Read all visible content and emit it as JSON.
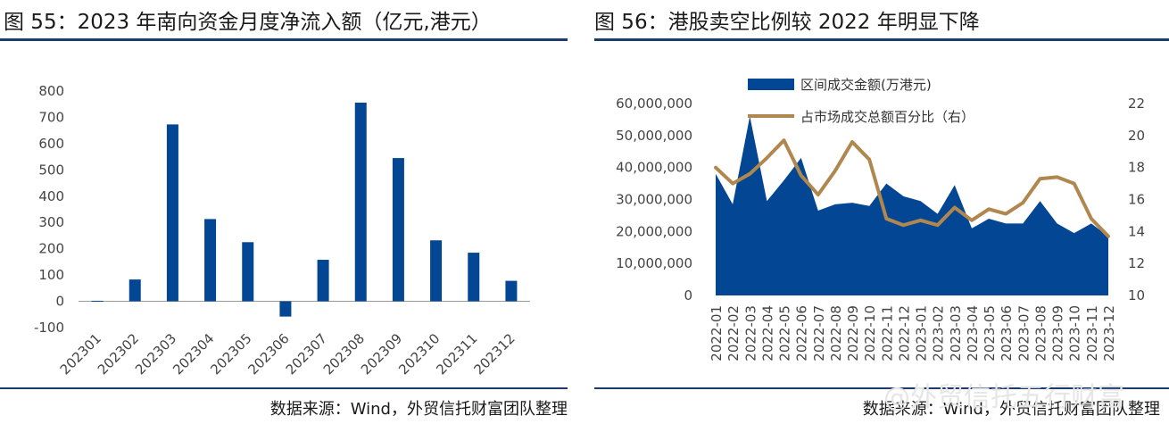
{
  "left_panel": {
    "title": "图 55：2023 年南向资金月度净流入额（亿元,港元）",
    "source": "数据来源：Wind，外贸信托财富团队整理"
  },
  "right_panel": {
    "title": "图 56：港股卖空比例较 2022 年明显下降",
    "source": "数据来源：Wind，外贸信托财富团队整理"
  },
  "watermark": "@外贸信托五行财富",
  "colors": {
    "navy": "#034694",
    "gold": "#b0884f",
    "rule": "#1a3d6e"
  },
  "chart_data": [
    {
      "type": "bar",
      "categories": [
        "202301",
        "202302",
        "202303",
        "202304",
        "202305",
        "202306",
        "202307",
        "202308",
        "202309",
        "202310",
        "202311",
        "202312"
      ],
      "values": [
        2,
        83,
        673,
        313,
        225,
        -58,
        158,
        756,
        545,
        232,
        185,
        78
      ],
      "ylim": [
        -100,
        800
      ],
      "yticks": [
        -100,
        0,
        100,
        200,
        300,
        400,
        500,
        600,
        700,
        800
      ],
      "ytick_labels": [
        "-100",
        "0",
        "100",
        "200",
        "300",
        "400",
        "500",
        "600",
        "700",
        "800"
      ],
      "grid": false,
      "color": "#034694"
    },
    {
      "type": "area",
      "categories": [
        "2022-01",
        "2022-02",
        "2022-03",
        "2022-04",
        "2022-05",
        "2022-06",
        "2022-07",
        "2022-08",
        "2022-09",
        "2022-10",
        "2022-11",
        "2022-12",
        "2023-01",
        "2023-02",
        "2023-03",
        "2023-04",
        "2023-05",
        "2023-06",
        "2023-07",
        "2023-08",
        "2023-09",
        "2023-10",
        "2023-11",
        "2023-12"
      ],
      "series": [
        {
          "name": "区间成交金额(万港元)",
          "kind": "area",
          "axis": "left",
          "color": "#034694",
          "values": [
            38000000,
            28500000,
            56000000,
            29500000,
            36000000,
            43000000,
            26500000,
            28500000,
            29000000,
            28000000,
            35000000,
            31000000,
            29500000,
            25500000,
            34500000,
            21000000,
            24000000,
            22500000,
            22500000,
            29500000,
            22500000,
            19500000,
            22500000,
            18500000
          ]
        },
        {
          "name": "占市场成交总额百分比（右）",
          "kind": "line",
          "axis": "right",
          "color": "#b0884f",
          "values": [
            18.0,
            17.0,
            17.6,
            18.6,
            19.7,
            17.5,
            16.3,
            17.8,
            19.6,
            18.5,
            14.8,
            14.4,
            14.7,
            14.4,
            15.5,
            14.7,
            15.4,
            15.1,
            15.8,
            17.3,
            17.4,
            17.0,
            14.8,
            13.7
          ]
        }
      ],
      "ylim_left": [
        0,
        60000000
      ],
      "yticks_left": [
        0,
        10000000,
        20000000,
        30000000,
        40000000,
        50000000,
        60000000
      ],
      "ytick_labels_left": [
        "0",
        "10,000,000",
        "20,000,000",
        "30,000,000",
        "40,000,000",
        "50,000,000",
        "60,000,000"
      ],
      "ylim_right": [
        10,
        22
      ],
      "yticks_right": [
        10,
        12,
        14,
        16,
        18,
        20,
        22
      ],
      "ytick_labels_right": [
        "10",
        "12",
        "14",
        "16",
        "18",
        "20",
        "22"
      ],
      "legend_position": "top-center",
      "grid": false
    }
  ]
}
